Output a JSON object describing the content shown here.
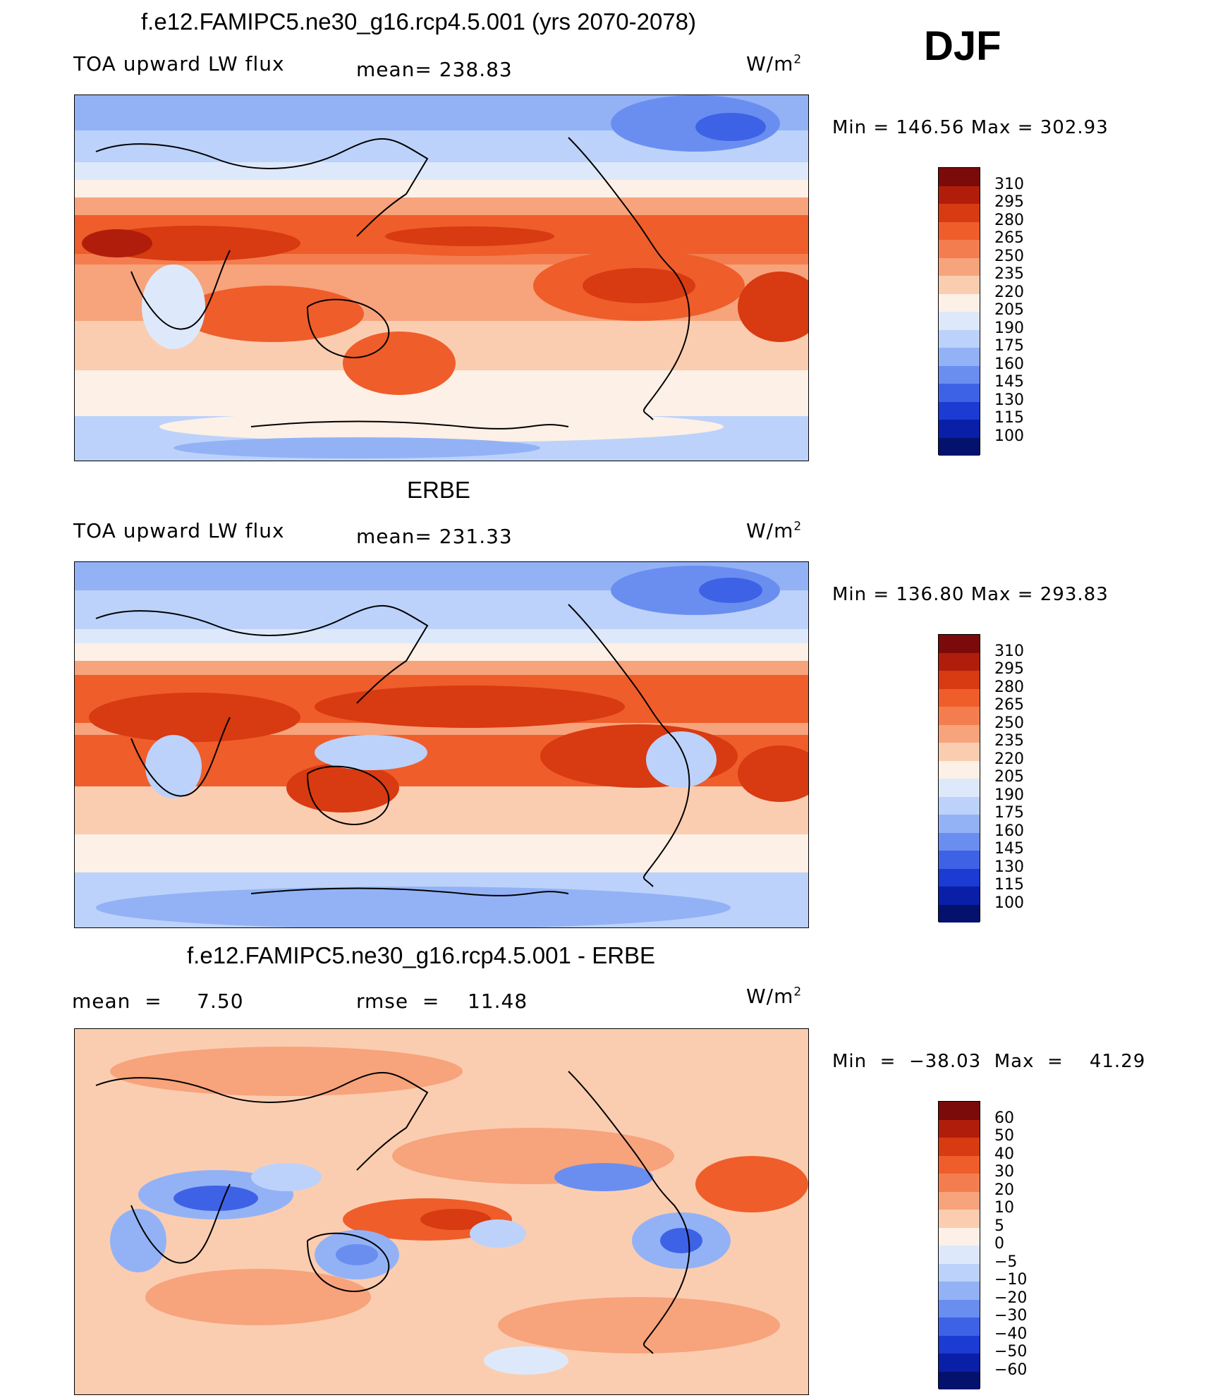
{
  "season": "DJF",
  "units": "W/m",
  "units_sup": "2",
  "panels": [
    {
      "title": "f.e12.FAMIPC5.ne30_g16.rcp4.5.001 (yrs 2070-2078)",
      "left_label": "TOA upward LW flux",
      "center_label": "mean=  238.83",
      "minmax": "Min  =  146.56  Max  =  302.93",
      "colorbar_labels": [
        "310",
        "295",
        "280",
        "265",
        "250",
        "235",
        "220",
        "205",
        "190",
        "175",
        "160",
        "145",
        "130",
        "115",
        "100"
      ]
    },
    {
      "title": "ERBE",
      "left_label": "TOA upward LW flux",
      "center_label": "mean=  231.33",
      "minmax": "Min  =  136.80  Max  =  293.83",
      "colorbar_labels": [
        "310",
        "295",
        "280",
        "265",
        "250",
        "235",
        "220",
        "205",
        "190",
        "175",
        "160",
        "145",
        "130",
        "115",
        "100"
      ]
    },
    {
      "title": "f.e12.FAMIPC5.ne30_g16.rcp4.5.001 - ERBE",
      "left_label": "mean  =     7.50",
      "center_label": "rmse  =    11.48",
      "minmax": "Min  =  −38.03  Max  =    41.29",
      "colorbar_labels": [
        "60",
        "50",
        "40",
        "30",
        "20",
        "10",
        "5",
        "0",
        "−5",
        "−10",
        "−20",
        "−30",
        "−40",
        "−50",
        "−60"
      ]
    }
  ],
  "colorbar_colors": [
    "#7b0a0a",
    "#b01e0b",
    "#d83a11",
    "#ef5d2a",
    "#f47d4f",
    "#f7a37c",
    "#fbcdb0",
    "#fdf0e6",
    "#dde9fb",
    "#bcd2fa",
    "#93b2f6",
    "#6a8ef0",
    "#3e62e6",
    "#1b3bd2",
    "#0a1fa8",
    "#04126e"
  ]
}
